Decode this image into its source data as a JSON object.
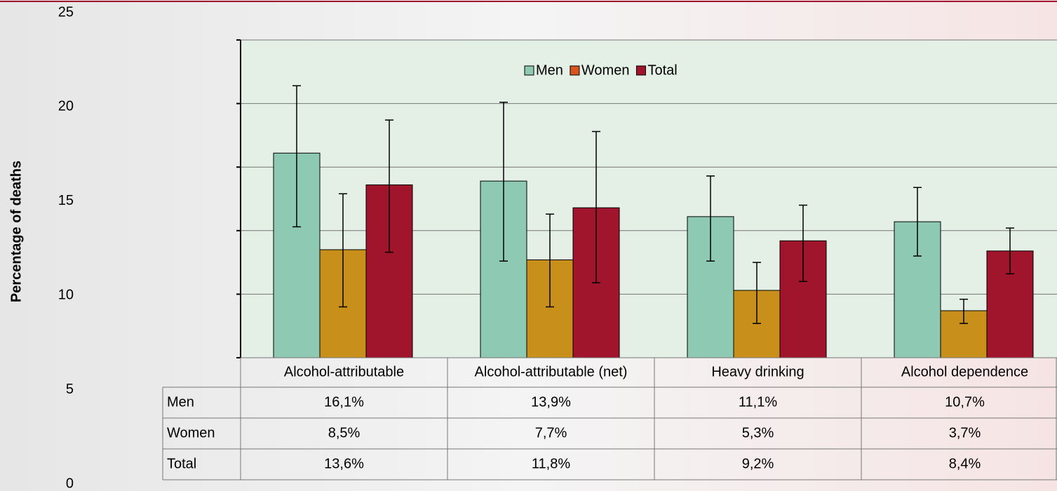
{
  "chart_data": {
    "type": "bar",
    "y_label": "Percentage of deaths",
    "categories": [
      "Alcohol-attributable",
      "Alcohol-attributable (net)",
      "Heavy drinking",
      "Alcohol dependence"
    ],
    "series": [
      {
        "name": "Men",
        "color": "#8ecab3",
        "values": [
          16.1,
          13.9,
          11.1,
          10.7
        ],
        "value_labels": [
          "16,1%",
          "13,9%",
          "11,1%",
          "10,7%"
        ],
        "lower": [
          10.3,
          7.6,
          7.6,
          8.0
        ],
        "upper": [
          21.4,
          20.1,
          14.3,
          13.4
        ]
      },
      {
        "name": "Women",
        "color": "#c8901a",
        "values": [
          8.5,
          7.7,
          5.3,
          3.7
        ],
        "value_labels": [
          "8,5%",
          "7,7%",
          "5,3%",
          "3,7%"
        ],
        "lower": [
          4.0,
          4.0,
          2.7,
          2.7
        ],
        "upper": [
          12.9,
          11.3,
          7.5,
          4.6
        ]
      },
      {
        "name": "Total",
        "color": "#a0152b",
        "values": [
          13.6,
          11.8,
          9.2,
          8.4
        ],
        "value_labels": [
          "13,6%",
          "11,8%",
          "9,2%",
          "8,4%"
        ],
        "lower": [
          8.3,
          5.9,
          6.0,
          6.6
        ],
        "upper": [
          18.7,
          17.8,
          12.0,
          10.2
        ]
      }
    ],
    "ylim": [
      0,
      25
    ],
    "yticks": [
      0,
      5,
      10,
      15,
      20,
      25
    ],
    "grid": true,
    "legend": "top"
  }
}
